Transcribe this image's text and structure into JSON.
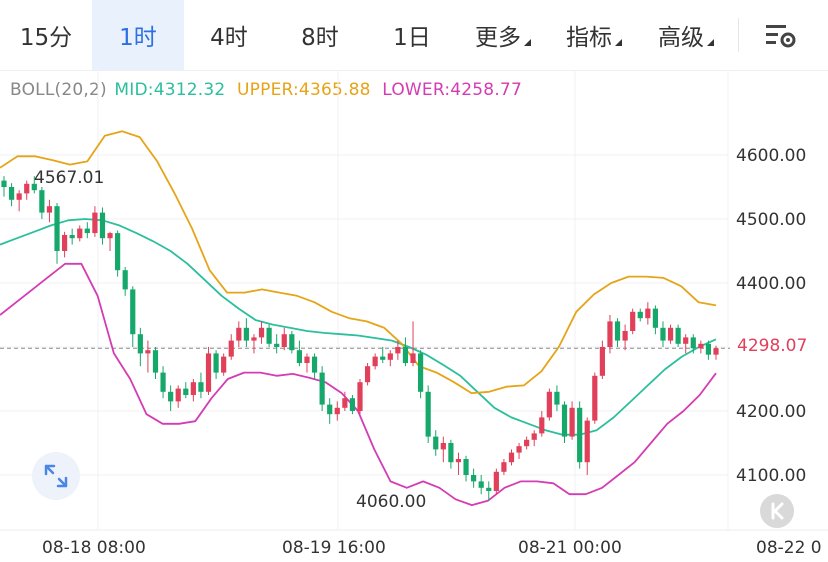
{
  "tabs": [
    {
      "label": "15分",
      "active": false,
      "dropdown": false
    },
    {
      "label": "1时",
      "active": true,
      "dropdown": false
    },
    {
      "label": "4时",
      "active": false,
      "dropdown": false
    },
    {
      "label": "8时",
      "active": false,
      "dropdown": false
    },
    {
      "label": "1日",
      "active": false,
      "dropdown": false
    },
    {
      "label": "更多",
      "active": false,
      "dropdown": true
    },
    {
      "label": "指标",
      "active": false,
      "dropdown": true
    },
    {
      "label": "高级",
      "active": false,
      "dropdown": true
    }
  ],
  "indicator": {
    "name": "BOLL(20,2)",
    "mid": "MID:4312.32",
    "upper": "UPPER:4365.88",
    "lower": "LOWER:4258.77"
  },
  "price_axis": [
    "4600.00",
    "4500.00",
    "4400.00",
    "4200.00",
    "4100.00"
  ],
  "current_price": "4298.07",
  "time_axis": [
    "08-18 08:00",
    "08-19 16:00",
    "08-21 00:00",
    "08-22 0"
  ],
  "annotations": {
    "high": "4567.01",
    "low": "4060.00"
  },
  "colors": {
    "up": "#e0405a",
    "down": "#16a86a",
    "mid": "#2bbf9c",
    "upper": "#e6a417",
    "lower": "#d43cb3",
    "accent": "#2f6fe4"
  },
  "icons": {
    "settings": "settings-gear-icon",
    "expand": "expand-icon",
    "back": "back-to-latest-icon"
  },
  "chart_data": {
    "type": "candlestick",
    "interval": "1h",
    "indicator": "BOLL(20,2)",
    "ylim": [
      4045,
      4660
    ],
    "x_ticks": [
      "08-18 08:00",
      "08-19 16:00",
      "08-21 00:00",
      "08-22 0"
    ],
    "candles": [
      [
        4560,
        4567,
        4535,
        4550
      ],
      [
        4550,
        4556,
        4520,
        4530
      ],
      [
        4530,
        4545,
        4512,
        4540
      ],
      [
        4540,
        4560,
        4530,
        4555
      ],
      [
        4555,
        4567,
        4540,
        4545
      ],
      [
        4545,
        4550,
        4500,
        4510
      ],
      [
        4510,
        4530,
        4495,
        4520
      ],
      [
        4520,
        4525,
        4430,
        4450
      ],
      [
        4450,
        4480,
        4440,
        4475
      ],
      [
        4475,
        4485,
        4460,
        4470
      ],
      [
        4470,
        4490,
        4465,
        4485
      ],
      [
        4485,
        4495,
        4470,
        4478
      ],
      [
        4478,
        4520,
        4472,
        4510
      ],
      [
        4510,
        4518,
        4460,
        4470
      ],
      [
        4470,
        4480,
        4450,
        4478
      ],
      [
        4478,
        4482,
        4410,
        4420
      ],
      [
        4420,
        4425,
        4380,
        4390
      ],
      [
        4390,
        4395,
        4300,
        4320
      ],
      [
        4320,
        4330,
        4270,
        4290
      ],
      [
        4290,
        4310,
        4260,
        4295
      ],
      [
        4295,
        4300,
        4250,
        4260
      ],
      [
        4260,
        4270,
        4220,
        4230
      ],
      [
        4230,
        4240,
        4200,
        4215
      ],
      [
        4215,
        4240,
        4205,
        4235
      ],
      [
        4235,
        4245,
        4220,
        4225
      ],
      [
        4225,
        4250,
        4215,
        4245
      ],
      [
        4245,
        4260,
        4220,
        4230
      ],
      [
        4230,
        4300,
        4225,
        4290
      ],
      [
        4290,
        4295,
        4250,
        4260
      ],
      [
        4260,
        4290,
        4255,
        4285
      ],
      [
        4285,
        4320,
        4280,
        4310
      ],
      [
        4310,
        4340,
        4300,
        4330
      ],
      [
        4330,
        4345,
        4300,
        4310
      ],
      [
        4310,
        4320,
        4290,
        4315
      ],
      [
        4315,
        4340,
        4305,
        4330
      ],
      [
        4330,
        4335,
        4300,
        4305
      ],
      [
        4305,
        4320,
        4290,
        4300
      ],
      [
        4300,
        4330,
        4295,
        4320
      ],
      [
        4320,
        4325,
        4290,
        4295
      ],
      [
        4295,
        4310,
        4270,
        4275
      ],
      [
        4275,
        4290,
        4260,
        4285
      ],
      [
        4285,
        4290,
        4250,
        4260
      ],
      [
        4260,
        4270,
        4200,
        4210
      ],
      [
        4210,
        4220,
        4180,
        4195
      ],
      [
        4195,
        4215,
        4185,
        4205
      ],
      [
        4205,
        4230,
        4200,
        4220
      ],
      [
        4220,
        4225,
        4195,
        4200
      ],
      [
        4200,
        4250,
        4195,
        4245
      ],
      [
        4245,
        4275,
        4240,
        4270
      ],
      [
        4270,
        4290,
        4265,
        4285
      ],
      [
        4285,
        4300,
        4275,
        4280
      ],
      [
        4280,
        4295,
        4270,
        4290
      ],
      [
        4290,
        4310,
        4280,
        4300
      ],
      [
        4300,
        4315,
        4270,
        4275
      ],
      [
        4275,
        4340,
        4270,
        4290
      ],
      [
        4290,
        4295,
        4220,
        4230
      ],
      [
        4230,
        4240,
        4150,
        4160
      ],
      [
        4160,
        4170,
        4130,
        4140
      ],
      [
        4140,
        4160,
        4120,
        4150
      ],
      [
        4150,
        4155,
        4110,
        4120
      ],
      [
        4120,
        4135,
        4100,
        4125
      ],
      [
        4125,
        4130,
        4090,
        4100
      ],
      [
        4100,
        4110,
        4080,
        4090
      ],
      [
        4090,
        4100,
        4070,
        4080
      ],
      [
        4080,
        4090,
        4060,
        4075
      ],
      [
        4075,
        4110,
        4070,
        4105
      ],
      [
        4105,
        4125,
        4100,
        4120
      ],
      [
        4120,
        4140,
        4115,
        4135
      ],
      [
        4135,
        4150,
        4125,
        4145
      ],
      [
        4145,
        4160,
        4140,
        4155
      ],
      [
        4155,
        4170,
        4145,
        4165
      ],
      [
        4165,
        4200,
        4160,
        4190
      ],
      [
        4190,
        4235,
        4185,
        4230
      ],
      [
        4230,
        4240,
        4200,
        4210
      ],
      [
        4210,
        4215,
        4150,
        4160
      ],
      [
        4160,
        4215,
        4155,
        4205
      ],
      [
        4205,
        4215,
        4110,
        4120
      ],
      [
        4120,
        4190,
        4100,
        4185
      ],
      [
        4185,
        4260,
        4180,
        4255
      ],
      [
        4255,
        4310,
        4250,
        4300
      ],
      [
        4300,
        4350,
        4290,
        4340
      ],
      [
        4340,
        4345,
        4300,
        4310
      ],
      [
        4310,
        4335,
        4295,
        4325
      ],
      [
        4325,
        4360,
        4320,
        4355
      ],
      [
        4355,
        4360,
        4340,
        4345
      ],
      [
        4345,
        4370,
        4335,
        4360
      ],
      [
        4360,
        4365,
        4320,
        4330
      ],
      [
        4330,
        4340,
        4300,
        4310
      ],
      [
        4310,
        4335,
        4305,
        4330
      ],
      [
        4330,
        4335,
        4300,
        4305
      ],
      [
        4305,
        4320,
        4290,
        4315
      ],
      [
        4315,
        4320,
        4290,
        4298
      ],
      [
        4298,
        4310,
        4290,
        4305
      ],
      [
        4305,
        4310,
        4280,
        4288
      ],
      [
        4288,
        4302,
        4280,
        4298
      ]
    ],
    "series": [
      {
        "name": "MID",
        "values": [
          4460,
          4470,
          4480,
          4490,
          4498,
          4500,
          4498,
          4490,
          4478,
          4465,
          4450,
          4430,
          4405,
          4380,
          4360,
          4342,
          4335,
          4330,
          4325,
          4322,
          4320,
          4318,
          4314,
          4310,
          4300,
          4288,
          4272,
          4255,
          4230,
          4205,
          4190,
          4180,
          4170,
          4163,
          4163,
          4170,
          4190,
          4215,
          4240,
          4265,
          4285,
          4300,
          4312
        ]
      },
      {
        "name": "UPPER",
        "values": [
          4580,
          4598,
          4598,
          4592,
          4585,
          4590,
          4630,
          4637,
          4628,
          4590,
          4540,
          4485,
          4420,
          4385,
          4385,
          4390,
          4385,
          4380,
          4370,
          4355,
          4345,
          4340,
          4330,
          4305,
          4270,
          4260,
          4245,
          4228,
          4230,
          4238,
          4240,
          4262,
          4300,
          4355,
          4382,
          4400,
          4410,
          4410,
          4408,
          4395,
          4370,
          4365
        ]
      },
      {
        "name": "LOWER",
        "values": [
          4350,
          4370,
          4390,
          4410,
          4430,
          4430,
          4380,
          4290,
          4250,
          4195,
          4180,
          4180,
          4184,
          4220,
          4250,
          4260,
          4260,
          4255,
          4258,
          4252,
          4245,
          4228,
          4200,
          4140,
          4090,
          4080,
          4090,
          4080,
          4062,
          4053,
          4060,
          4080,
          4090,
          4090,
          4087,
          4070,
          4070,
          4080,
          4100,
          4120,
          4150,
          4180,
          4200,
          4225,
          4259
        ]
      }
    ]
  }
}
